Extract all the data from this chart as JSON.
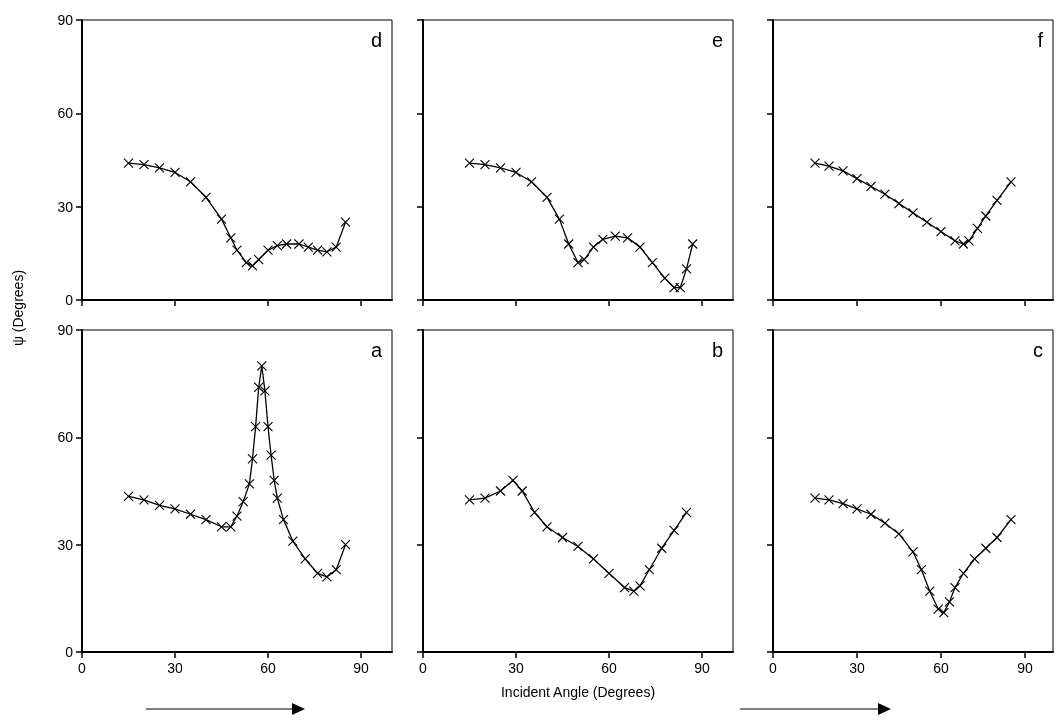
{
  "chart_data": [
    {
      "type": "line",
      "marker": "cross",
      "annotations": [
        "d"
      ],
      "xlim": [
        0,
        100
      ],
      "xticks": [
        0,
        30,
        60,
        90
      ],
      "ylim": [
        0,
        90
      ],
      "yticks": [
        0,
        30,
        60,
        90
      ],
      "tick_labels": "y",
      "grid": false,
      "series": [
        {
          "color": "#000000",
          "x": [
            15,
            20,
            25,
            30,
            35,
            40,
            45,
            48,
            50,
            53,
            55,
            57,
            60,
            63,
            66,
            70,
            73,
            76,
            79,
            82,
            85
          ],
          "values": [
            44,
            43.5,
            42.5,
            41,
            38,
            33,
            26,
            20,
            16,
            12,
            11,
            13,
            16,
            17.5,
            18,
            18,
            17,
            16,
            15.5,
            17,
            25
          ]
        }
      ]
    },
    {
      "type": "line",
      "marker": "cross",
      "annotations": [
        "e"
      ],
      "xlim": [
        0,
        100
      ],
      "xticks": [
        0,
        30,
        60,
        90
      ],
      "ylim": [
        0,
        90
      ],
      "yticks": [
        0,
        30,
        60,
        90
      ],
      "tick_labels": false,
      "grid": false,
      "series": [
        {
          "color": "#000000",
          "x": [
            15,
            20,
            25,
            30,
            35,
            40,
            44,
            47,
            50,
            52,
            55,
            58,
            62,
            66,
            70,
            74,
            78,
            81,
            83,
            85,
            87
          ],
          "values": [
            44,
            43.5,
            42.5,
            41,
            38,
            33,
            26,
            18,
            12,
            13,
            17,
            19.5,
            20.5,
            20,
            17,
            12,
            7,
            4,
            4,
            10,
            18
          ]
        }
      ]
    },
    {
      "type": "line",
      "marker": "cross",
      "annotations": [
        "f"
      ],
      "xlim": [
        0,
        100
      ],
      "xticks": [
        0,
        30,
        60,
        90
      ],
      "ylim": [
        0,
        90
      ],
      "yticks": [
        0,
        30,
        60,
        90
      ],
      "tick_labels": false,
      "grid": false,
      "series": [
        {
          "color": "#000000",
          "x": [
            15,
            20,
            25,
            30,
            35,
            40,
            45,
            50,
            55,
            60,
            65,
            68,
            70,
            73,
            76,
            80,
            85
          ],
          "values": [
            44,
            43,
            41.5,
            39,
            36.5,
            34,
            31,
            28,
            25,
            22,
            19,
            18,
            19,
            23,
            27,
            32,
            38
          ]
        }
      ]
    },
    {
      "type": "line",
      "marker": "cross",
      "annotations": [
        "a"
      ],
      "ylabel": "ψ (Degrees)",
      "xlim": [
        0,
        100
      ],
      "xticks": [
        0,
        30,
        60,
        90
      ],
      "ylim": [
        0,
        90
      ],
      "yticks": [
        0,
        30,
        60,
        90
      ],
      "grid": false,
      "series": [
        {
          "color": "#000000",
          "x": [
            15,
            20,
            25,
            30,
            35,
            40,
            45,
            48,
            50,
            52,
            54,
            55,
            56,
            57,
            58,
            59,
            60,
            61,
            62,
            63,
            65,
            68,
            72,
            76,
            79,
            82,
            85
          ],
          "values": [
            43.5,
            42.5,
            41,
            40,
            38.5,
            37,
            35,
            35,
            38,
            42,
            47,
            54,
            63,
            74,
            80,
            73,
            63,
            55,
            48,
            43,
            37,
            31,
            26,
            22,
            21,
            23,
            30
          ]
        }
      ]
    },
    {
      "type": "line",
      "marker": "cross",
      "annotations": [
        "b"
      ],
      "xlabel": "Incident Angle (Degrees)",
      "xlim": [
        0,
        100
      ],
      "xticks": [
        0,
        30,
        60,
        90
      ],
      "ylim": [
        0,
        90
      ],
      "yticks": [
        0,
        30,
        60,
        90
      ],
      "tick_labels": "x",
      "grid": false,
      "series": [
        {
          "color": "#000000",
          "x": [
            15,
            20,
            25,
            29,
            32,
            36,
            40,
            45,
            50,
            55,
            60,
            65,
            68,
            70,
            73,
            77,
            81,
            85
          ],
          "values": [
            42.5,
            43,
            45,
            48,
            45,
            39,
            35,
            32,
            29.5,
            26,
            22,
            18,
            17,
            18.5,
            23,
            29,
            34,
            39
          ]
        }
      ]
    },
    {
      "type": "line",
      "marker": "cross",
      "annotations": [
        "c"
      ],
      "xlim": [
        0,
        100
      ],
      "xticks": [
        0,
        30,
        60,
        90
      ],
      "ylim": [
        0,
        90
      ],
      "yticks": [
        0,
        30,
        60,
        90
      ],
      "tick_labels": "x",
      "grid": false,
      "series": [
        {
          "color": "#000000",
          "x": [
            15,
            20,
            25,
            30,
            35,
            40,
            45,
            50,
            53,
            56,
            59,
            61,
            63,
            65,
            68,
            72,
            76,
            80,
            85
          ],
          "values": [
            43,
            42.5,
            41.5,
            40,
            38.5,
            36,
            33,
            28,
            23,
            17,
            12,
            11,
            14,
            18,
            22,
            26,
            29,
            32,
            37
          ]
        }
      ]
    }
  ]
}
